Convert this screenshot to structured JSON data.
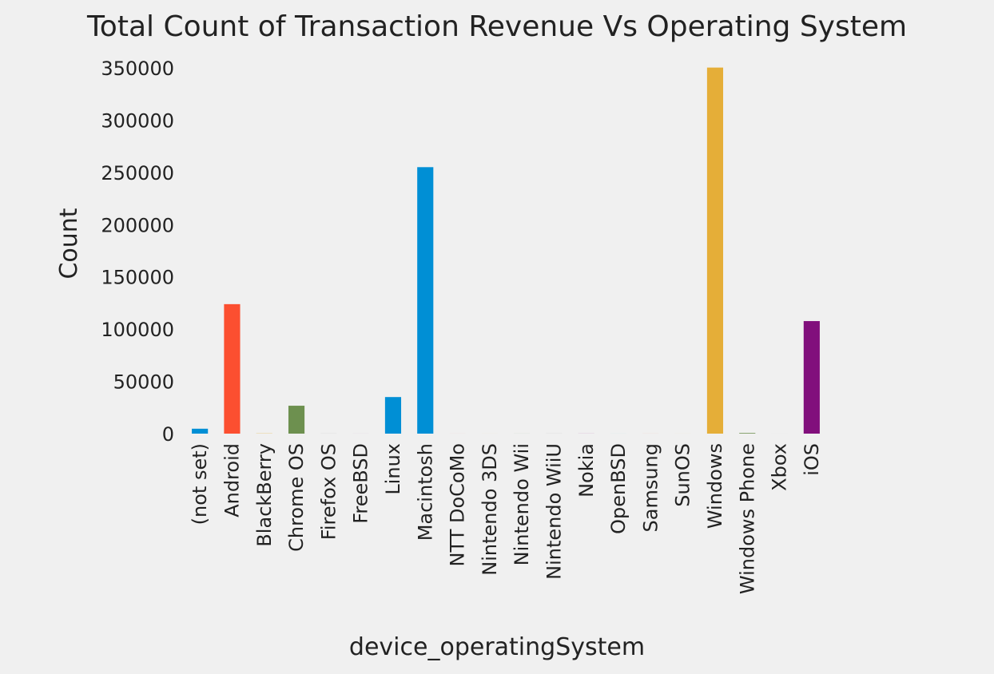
{
  "chart_data": {
    "type": "bar",
    "title": "Total Count of Transaction Revenue Vs Operating System",
    "xlabel": "device_operatingSystem",
    "ylabel": "Count",
    "categories": [
      "(not set)",
      "Android",
      "BlackBerry",
      "Chrome OS",
      "Firefox OS",
      "FreeBSD",
      "Linux",
      "Macintosh",
      "NTT DoCoMo",
      "Nintendo 3DS",
      "Nintendo Wii",
      "Nintendo WiiU",
      "Nokia",
      "OpenBSD",
      "Samsung",
      "SunOS",
      "Windows",
      "Windows Phone",
      "Xbox",
      "iOS"
    ],
    "values": [
      4700,
      123900,
      200,
      26700,
      60,
      20,
      35000,
      255000,
      20,
      20,
      40,
      60,
      60,
      20,
      30,
      20,
      350300,
      600,
      20,
      107700
    ],
    "bar_colors": [
      "#008fd5",
      "#fc4f30",
      "#e5ae38",
      "#6d904f",
      "#8b8b8b",
      "#810f7c",
      "#008fd5",
      "#008fd5",
      "#fc4f30",
      "#e5ae38",
      "#6d904f",
      "#8b8b8b",
      "#810f7c",
      "#008fd5",
      "#fc4f30",
      "#e5ae38",
      "#e5ae38",
      "#6d904f",
      "#8b8b8b",
      "#810f7c"
    ],
    "yticks": [
      0,
      50000,
      100000,
      150000,
      200000,
      250000,
      300000,
      350000
    ],
    "ylim": [
      0,
      350000
    ],
    "grid": false,
    "legend": "none",
    "background": "#f0f0f0"
  }
}
